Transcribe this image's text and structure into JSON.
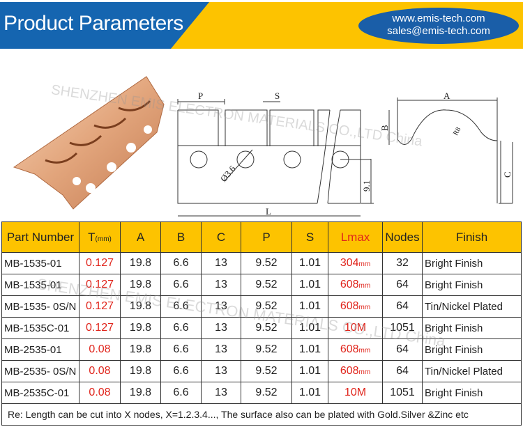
{
  "header": {
    "title": "Product Parameters",
    "website": "www.emis-tech.com",
    "email": "sales@emis-tech.com",
    "colors": {
      "blue": "#1565b0",
      "yellow": "#fdc300",
      "red": "#e0241b"
    }
  },
  "watermark": "SHENZHEN EMIS ELECTRON MATERIALS CO.,LTD China",
  "diagram": {
    "p": "P",
    "s": "S",
    "l": "L",
    "hole": "Ø3.6",
    "height": "9.1",
    "a": "A",
    "b": "B",
    "c": "C",
    "radius": "R8"
  },
  "table": {
    "headers": [
      "Part Number",
      "T",
      "(mm)",
      "A",
      "B",
      "C",
      "P",
      "S",
      "Lmax",
      "Nodes",
      "Finish"
    ],
    "rows": [
      [
        "MB-1535-01",
        "0.127",
        "19.8",
        "6.6",
        "13",
        "9.52",
        "1.01",
        "304",
        "mm",
        "32",
        "Bright Finish"
      ],
      [
        "MB-1535-01",
        "0.127",
        "19.8",
        "6.6",
        "13",
        "9.52",
        "1.01",
        "608",
        "mm",
        "64",
        "Bright Finish"
      ],
      [
        "MB-1535- 0S/N",
        "0.127",
        "19.8",
        "6.6",
        "13",
        "9.52",
        "1.01",
        "608",
        "mm",
        "64",
        "Tin/Nickel Plated"
      ],
      [
        "MB-1535C-01",
        "0.127",
        "19.8",
        "6.6",
        "13",
        "9.52",
        "1.01",
        "10M",
        "",
        "1051",
        "Bright Finish"
      ],
      [
        "MB-2535-01",
        "0.08",
        "19.8",
        "6.6",
        "13",
        "9.52",
        "1.01",
        "608",
        "mm",
        "64",
        "Bright Finish"
      ],
      [
        "MB-2535- 0S/N",
        "0.08",
        "19.8",
        "6.6",
        "13",
        "9.52",
        "1.01",
        "608",
        "mm",
        "64",
        "Tin/Nickel Plated"
      ],
      [
        "MB-2535C-01",
        "0.08",
        "19.8",
        "6.6",
        "13",
        "9.52",
        "1.01",
        "10M",
        "",
        "1051",
        "Bright Finish"
      ]
    ],
    "note": "Re: Length can be cut into X  nodes, X=1.2.3.4..., The surface also can be plated with Gold.Silver &Zinc etc"
  }
}
